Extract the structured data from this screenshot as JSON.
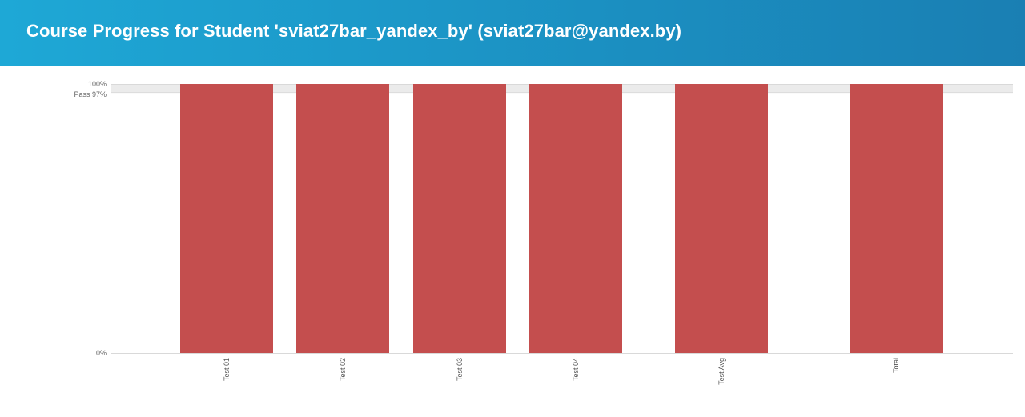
{
  "header": {
    "title": "Course Progress for Student 'sviat27bar_yandex_by' (sviat27bar@yandex.by)"
  },
  "colors": {
    "header_start": "#1ea8d6",
    "header_end": "#1a7fb3",
    "bar": "#c44e4e",
    "pass_band": "#ebebeb",
    "axis": "#d9d9d9"
  },
  "chart_data": {
    "type": "bar",
    "title": "",
    "xlabel": "",
    "ylabel": "",
    "ylim": [
      0,
      100
    ],
    "categories": [
      "Test 01",
      "Test 02",
      "Test 03",
      "Test 04",
      "Test Avg",
      "Total"
    ],
    "values": [
      100,
      100,
      100,
      100,
      100,
      100
    ],
    "y_ticks": [
      {
        "value": 0,
        "label": "0%"
      },
      {
        "value": 97,
        "label": "Pass 97%"
      },
      {
        "value": 100,
        "label": "100%"
      }
    ],
    "pass_threshold": 97,
    "grid": false,
    "legend": "none"
  }
}
